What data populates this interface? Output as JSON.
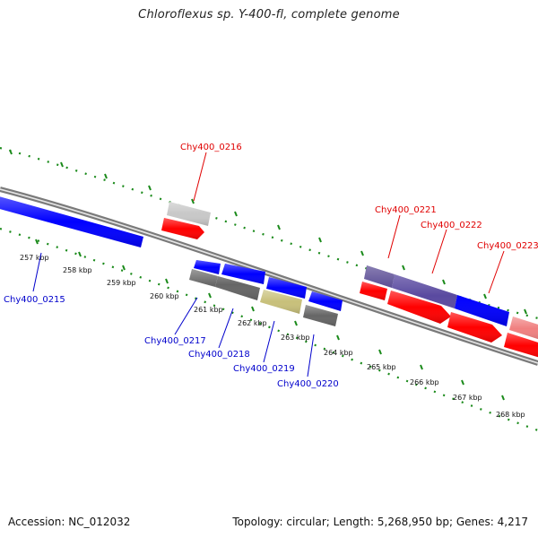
{
  "title": "Chloroflexus sp. Y-400-fl, complete genome",
  "footer": {
    "accession": "Accession: NC_012032",
    "summary": "Topology: circular; Length: 5,268,950 bp; Genes: 4,217"
  },
  "scale_ticks": [
    "257 kbp",
    "258 kbp",
    "259 kbp",
    "260 kbp",
    "261 kbp",
    "262 kbp",
    "263 kbp",
    "264 kbp",
    "265 kbp",
    "266 kbp",
    "267 kbp",
    "268 kbp"
  ],
  "gene_labels": {
    "forward": [
      "Chy400_0216",
      "Chy400_0221",
      "Chy400_0222",
      "Chy400_0223"
    ],
    "reverse": [
      "Chy400_0215",
      "Chy400_0217",
      "Chy400_0218",
      "Chy400_0219",
      "Chy400_0220"
    ]
  },
  "colors": {
    "forward_label": "#e00000",
    "reverse_label": "#0000cc",
    "backbone": "#888888",
    "dots": "#1a8a1a",
    "cds_forward": "#ff0000",
    "cds_reverse": "#0000ff",
    "trna": "#c8c8c8",
    "misc_gray": "#666666",
    "misc_khaki": "#c8c07a",
    "overlap_purple": "#5a4aa0",
    "pink": "#f08080"
  }
}
